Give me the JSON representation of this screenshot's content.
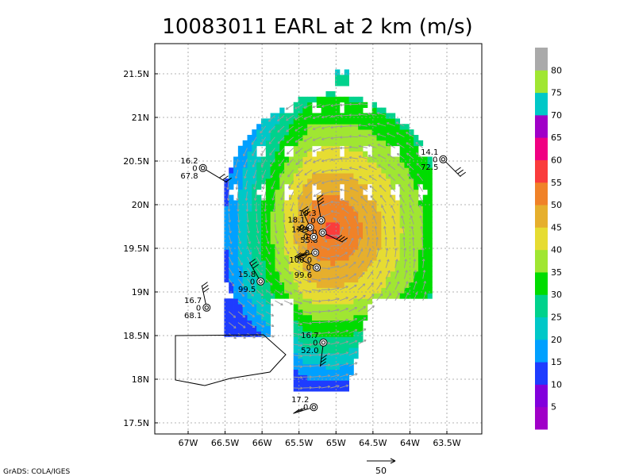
{
  "title": "10083011 EARL at 2 km (m/s)",
  "credit": "GrADS: COLA/IGES",
  "x_axis": {
    "ticks": [
      "67W",
      "66.5W",
      "66W",
      "65.5W",
      "65W",
      "64.5W",
      "64W",
      "63.5W"
    ],
    "lon_values": [
      -67,
      -66.5,
      -66,
      -65.5,
      -65,
      -64.5,
      -64,
      -63.5
    ],
    "range": [
      -67.3,
      -63.3
    ]
  },
  "y_axis": {
    "ticks": [
      "17.5N",
      "18N",
      "18.5N",
      "19N",
      "19.5N",
      "20N",
      "20.5N",
      "21N",
      "21.5N"
    ],
    "lat_values": [
      17.5,
      18,
      18.5,
      19,
      19.5,
      20,
      20.5,
      21,
      21.5
    ],
    "range": [
      17.4,
      21.8
    ]
  },
  "colorbar": {
    "labels": [
      "5",
      "10",
      "15",
      "20",
      "25",
      "30",
      "35",
      "40",
      "45",
      "50",
      "55",
      "60",
      "65",
      "70",
      "75",
      "80"
    ],
    "colors": [
      "#a000c8",
      "#8200dc",
      "#1e3cff",
      "#00a0ff",
      "#00c8c8",
      "#00d28c",
      "#00dc00",
      "#a0e632",
      "#e6dc32",
      "#e6af2d",
      "#f08228",
      "#fa3c3c",
      "#f00082",
      "#a000c8",
      "#00c8c8",
      "#a0e632",
      "#aaaaaa"
    ]
  },
  "vector_scale_label": "50",
  "observations": [
    {
      "id": "obs-1",
      "top": "16.2",
      "bottom": "67.8",
      "lon": -66.8,
      "lat": 20.42
    },
    {
      "id": "obs-2",
      "top": "14.1",
      "bottom": "72.5",
      "lon": -63.55,
      "lat": 20.52
    },
    {
      "id": "obs-3",
      "top": "19.3",
      "bottom": "",
      "lon": -65.2,
      "lat": 19.82
    },
    {
      "id": "obs-4",
      "top": "18.1",
      "bottom": "",
      "lon": -65.35,
      "lat": 19.74
    },
    {
      "id": "obs-5",
      "top": "",
      "bottom": "55.8",
      "lon": -65.18,
      "lat": 19.68
    },
    {
      "id": "obs-6",
      "top": "17.9",
      "bottom": "",
      "lon": -65.3,
      "lat": 19.63
    },
    {
      "id": "obs-7",
      "top": "",
      "bottom": "",
      "lon": -65.28,
      "lat": 19.45
    },
    {
      "id": "obs-8",
      "top": "100.0",
      "bottom": "99.6",
      "lon": -65.26,
      "lat": 19.28
    },
    {
      "id": "obs-9",
      "top": "15.8",
      "bottom": "99.5",
      "lon": -66.02,
      "lat": 19.12
    },
    {
      "id": "obs-10",
      "top": "16.7",
      "bottom": "68.1",
      "lon": -66.75,
      "lat": 18.82
    },
    {
      "id": "obs-11",
      "top": "16.7",
      "bottom": "52.0",
      "lon": -65.17,
      "lat": 18.42
    },
    {
      "id": "obs-12",
      "top": "17.2",
      "bottom": "",
      "lon": -65.3,
      "lat": 17.68
    }
  ],
  "center": {
    "lon": -65.05,
    "lat": 19.72
  }
}
